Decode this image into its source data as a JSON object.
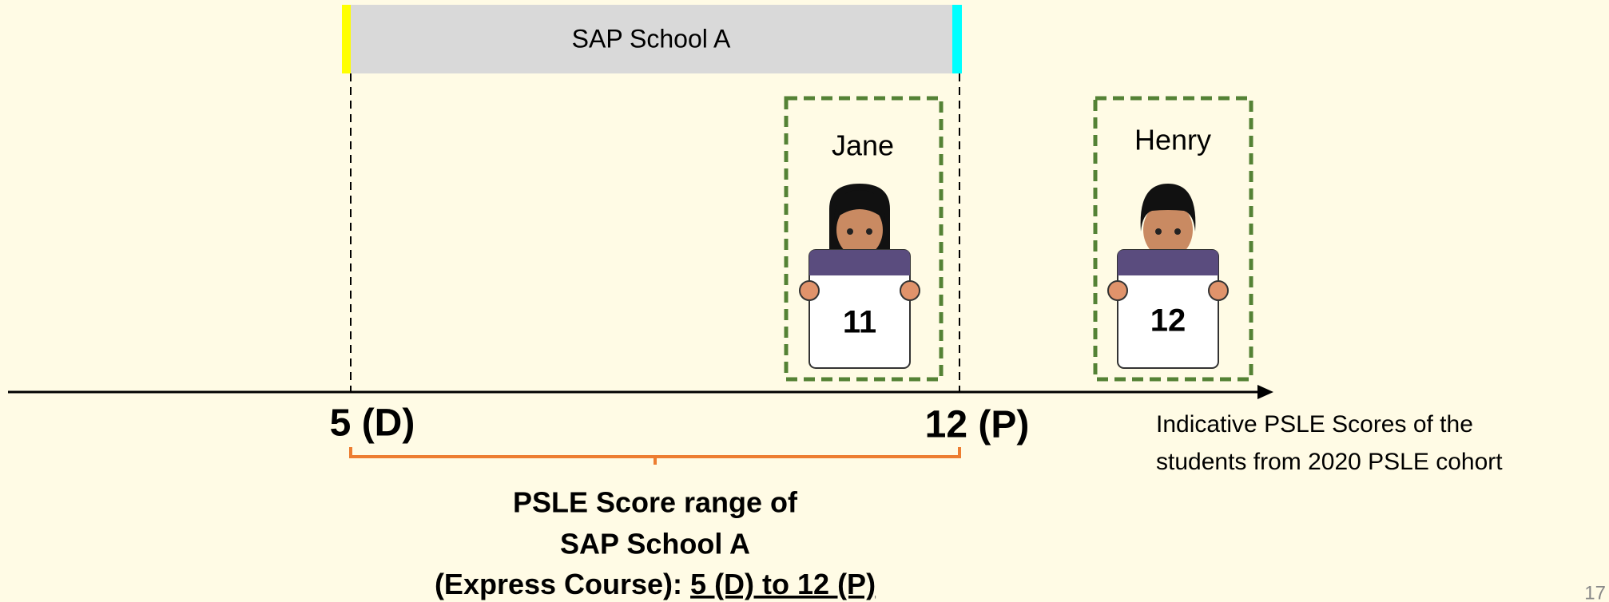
{
  "school_bar": {
    "label": "SAP School A"
  },
  "students": [
    {
      "name": "Jane",
      "score": "11"
    },
    {
      "name": "Henry",
      "score": "12"
    }
  ],
  "axis": {
    "low_label": "5 (D)",
    "high_label": "12 (P)",
    "caption": [
      "Indicative PSLE Scores of the",
      "students from 2020 PSLE cohort"
    ]
  },
  "range_caption": {
    "lines": [
      "PSLE Score range of",
      "SAP School A"
    ],
    "last_line_prefix": "(Express Course): ",
    "last_line_range": "5 (D) to 12 (P)"
  },
  "page_number": "17"
}
